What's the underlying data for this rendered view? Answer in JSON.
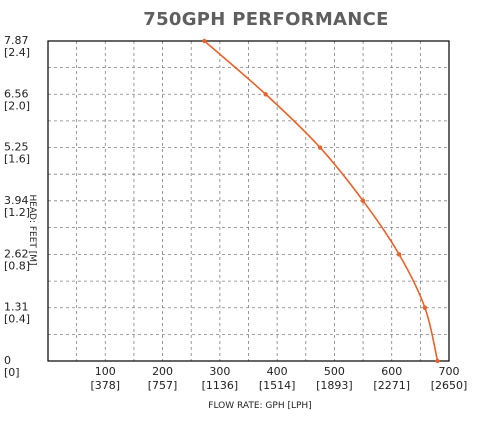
{
  "chart_data": {
    "type": "line",
    "title": "750GPH PERFORMANCE",
    "xlabel": "FLOW RATE: GPH [LPH]",
    "ylabel": "HEAD: FEET [M]",
    "xlim": [
      0,
      700
    ],
    "ylim": [
      0,
      7.87
    ],
    "x_ticks": [
      {
        "value": 0,
        "label": "0",
        "sub": "[0]"
      },
      {
        "value": 100,
        "label": "100",
        "sub": "[378]"
      },
      {
        "value": 200,
        "label": "200",
        "sub": "[757]"
      },
      {
        "value": 300,
        "label": "300",
        "sub": "[1136]"
      },
      {
        "value": 400,
        "label": "400",
        "sub": "[1514]"
      },
      {
        "value": 500,
        "label": "500",
        "sub": "[1893]"
      },
      {
        "value": 600,
        "label": "600",
        "sub": "[2271]"
      },
      {
        "value": 700,
        "label": "700",
        "sub": "[2650]"
      }
    ],
    "y_ticks": [
      {
        "value": 0,
        "label": "0",
        "sub": "[0]"
      },
      {
        "value": 1.31,
        "label": "1.31",
        "sub": "[0.4]"
      },
      {
        "value": 2.62,
        "label": "2.62",
        "sub": "[0.8]"
      },
      {
        "value": 3.94,
        "label": "3.94",
        "sub": "[1.2]"
      },
      {
        "value": 5.25,
        "label": "5.25",
        "sub": "[1.6]"
      },
      {
        "value": 6.56,
        "label": "6.56",
        "sub": "[2.0]"
      },
      {
        "value": 7.87,
        "label": "7.87",
        "sub": "[2.4]"
      }
    ],
    "grid": true,
    "series": [
      {
        "color": "#e8622a",
        "x": [
          273,
          380,
          475,
          550,
          613,
          658,
          680
        ],
        "y": [
          7.87,
          6.56,
          5.25,
          3.94,
          2.62,
          1.31,
          0
        ]
      }
    ]
  }
}
